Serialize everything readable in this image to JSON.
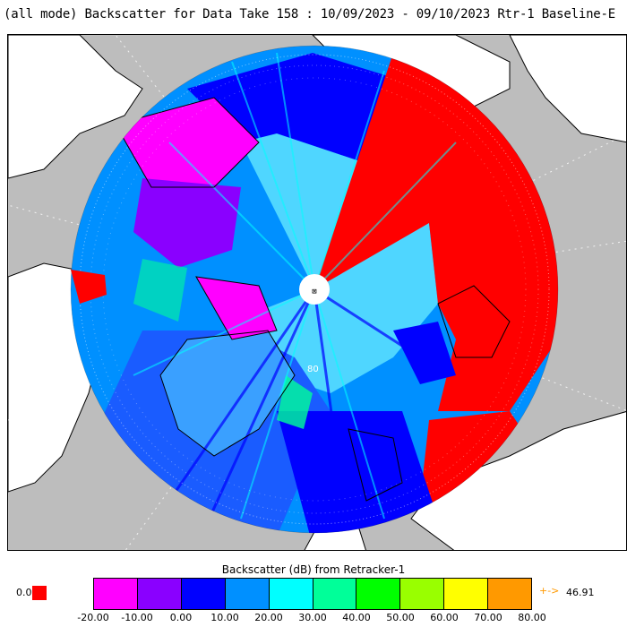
{
  "title": "(all mode) Backscatter for Data Take 158 : 10/09/2023 - 09/10/2023 Rtr-1 Baseline-E",
  "legend": {
    "title": "Backscatter (dB) from Retracker-1",
    "under_value": "0.0",
    "under_color": "#ff0000",
    "over_arrow": "+->",
    "over_value": "46.91",
    "over_color": "#ff9900",
    "ticks": [
      "-20.00",
      "-10.00",
      "0.00",
      "10.00",
      "20.00",
      "30.00",
      "40.00",
      "50.00",
      "60.00",
      "70.00",
      "80.00"
    ],
    "colors": [
      "#ff00ff",
      "#8a00ff",
      "#0000ff",
      "#0090ff",
      "#00ffff",
      "#00ff99",
      "#00ff00",
      "#99ff00",
      "#ffff00",
      "#ff9900"
    ]
  },
  "map": {
    "projection": "north polar stereographic",
    "background_color": "#bdbdbd",
    "land_color": "#ffffff",
    "pole_label": "⊠",
    "meridian_label": "80"
  }
}
